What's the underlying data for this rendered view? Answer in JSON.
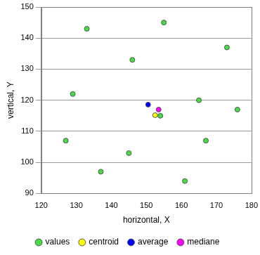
{
  "chart_data": {
    "type": "scatter",
    "x_label": "horizontal, X",
    "y_label": "vertical, Y",
    "xlim": [
      120,
      180
    ],
    "xticks": [
      120,
      130,
      140,
      150,
      160,
      170,
      180
    ],
    "ylim": [
      90,
      150
    ],
    "yticks": [
      90,
      100,
      110,
      120,
      130,
      140,
      150
    ],
    "grid": "y",
    "legend": "bottom",
    "series": [
      {
        "name": "values",
        "color": "#44dd44",
        "marker": "circle",
        "x": [
          127,
          129,
          133,
          137,
          145,
          146,
          154,
          155,
          161,
          165,
          167,
          173,
          176
        ],
        "values": [
          107,
          122,
          143,
          97,
          103,
          133,
          115,
          145,
          94,
          120,
          107,
          137,
          117
        ]
      },
      {
        "name": "centroid",
        "color": "#ffff00",
        "marker": "circle",
        "x": [
          152.5
        ],
        "values": [
          115.2
        ]
      },
      {
        "name": "average",
        "color": "#0000ff",
        "marker": "circle",
        "x": [
          150.5
        ],
        "values": [
          118.6
        ]
      },
      {
        "name": "mediane",
        "color": "#ff00ff",
        "marker": "circle",
        "x": [
          153.5
        ],
        "values": [
          117
        ]
      }
    ]
  }
}
